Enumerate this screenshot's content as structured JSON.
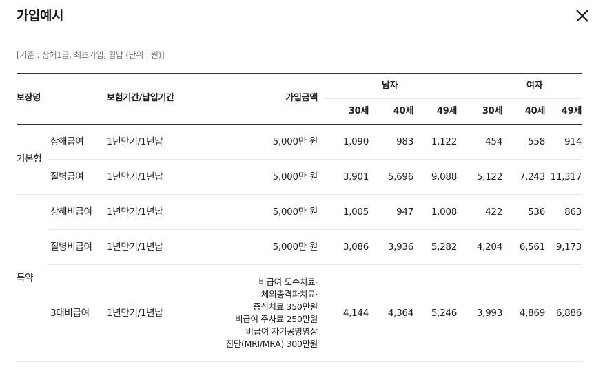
{
  "modal": {
    "title": "가입예시",
    "criteria": "[기준 : 상해1급, 최초가입, 월납 (단위 : 원)]"
  },
  "table": {
    "headers": {
      "coverage": "보장명",
      "period": "보험기간/납입기간",
      "amount": "가입금액",
      "male": "남자",
      "female": "여자",
      "ages": [
        "30세",
        "40세",
        "49세",
        "30세",
        "40세",
        "49세"
      ]
    },
    "groups": [
      {
        "name": "기본형"
      },
      {
        "name": "특약"
      }
    ],
    "rows": [
      {
        "name": "상해급여",
        "period": "1년만기/1년납",
        "amount": "5,000만 원",
        "premiums": [
          "1,090",
          "983",
          "1,122",
          "454",
          "558",
          "914"
        ]
      },
      {
        "name": "질병급여",
        "period": "1년만기/1년납",
        "amount": "5,000만 원",
        "premiums": [
          "3,901",
          "5,696",
          "9,088",
          "5,122",
          "7,243",
          "11,317"
        ]
      },
      {
        "name": "상해비급여",
        "period": "1년만기/1년납",
        "amount": "5,000만 원",
        "premiums": [
          "1,005",
          "947",
          "1,008",
          "422",
          "536",
          "863"
        ]
      },
      {
        "name": "질병비급여",
        "period": "1년만기/1년납",
        "amount": "5,000만 원",
        "premiums": [
          "3,086",
          "3,936",
          "5,282",
          "4,204",
          "6,561",
          "9,173"
        ]
      },
      {
        "name": "3대비급여",
        "period": "1년만기/1년납",
        "amount_lines": [
          "비급여 도수치료·",
          "체외충격파치료·",
          "증식치료 350만원",
          "비급여 주사료 250만원",
          "비급여 자기공명영상",
          "진단(MRI/MRA) 300만원"
        ],
        "premiums": [
          "4,144",
          "4,364",
          "5,246",
          "3,993",
          "4,869",
          "6,886"
        ]
      }
    ]
  }
}
